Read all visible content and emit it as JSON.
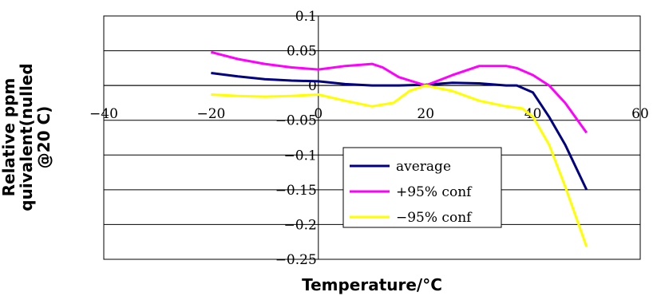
{
  "chart_data": {
    "type": "line",
    "title": "",
    "xlabel": "Temperature/°C",
    "ylabel_lines": [
      "Relative ppm",
      "quivalent(nulled",
      "@20 C)"
    ],
    "xlim": [
      -40,
      60
    ],
    "ylim": [
      -0.25,
      0.1
    ],
    "x_ticks": [
      -40,
      -20,
      0,
      20,
      40,
      60
    ],
    "x_tick_labels": [
      "−40",
      "−20",
      "0",
      "20",
      "40",
      "60"
    ],
    "y_ticks": [
      0.1,
      0.05,
      0,
      -0.05,
      -0.1,
      -0.15,
      -0.2,
      -0.25
    ],
    "y_tick_labels": [
      "0.1",
      "0.05",
      "0",
      "−0.05",
      "−0.1",
      "−0.15",
      "−0.2",
      "−0.25"
    ],
    "grid": "horizontal",
    "legend_position": "center-right",
    "series": [
      {
        "name": "average",
        "color": "#000080",
        "x": [
          -20,
          -15,
          -10,
          -5,
          0,
          5,
          10,
          15,
          20,
          25,
          30,
          35,
          37,
          40,
          43,
          46,
          50
        ],
        "y": [
          0.018,
          0.013,
          0.009,
          0.007,
          0.006,
          0.002,
          0.0,
          0.0,
          0.001,
          0.004,
          0.003,
          0.0,
          0.0,
          -0.01,
          -0.045,
          -0.085,
          -0.15
        ]
      },
      {
        "name": "+95% conf",
        "color": "#ff00ff",
        "x": [
          -20,
          -15,
          -10,
          -5,
          0,
          5,
          10,
          12,
          15,
          20,
          25,
          30,
          35,
          37,
          40,
          43,
          46,
          50
        ],
        "y": [
          0.048,
          0.038,
          0.031,
          0.026,
          0.023,
          0.028,
          0.031,
          0.026,
          0.012,
          0.0,
          0.015,
          0.028,
          0.028,
          0.025,
          0.015,
          0.0,
          -0.025,
          -0.068
        ]
      },
      {
        "name": "−95% conf",
        "color": "#ffff00",
        "x": [
          -20,
          -15,
          -10,
          -5,
          0,
          5,
          10,
          14,
          17,
          20,
          25,
          30,
          35,
          38,
          40,
          43,
          46,
          50
        ],
        "y": [
          -0.013,
          -0.015,
          -0.016,
          -0.015,
          -0.013,
          -0.022,
          -0.03,
          -0.025,
          -0.008,
          0.0,
          -0.008,
          -0.022,
          -0.03,
          -0.033,
          -0.045,
          -0.085,
          -0.145,
          -0.232
        ]
      }
    ]
  }
}
